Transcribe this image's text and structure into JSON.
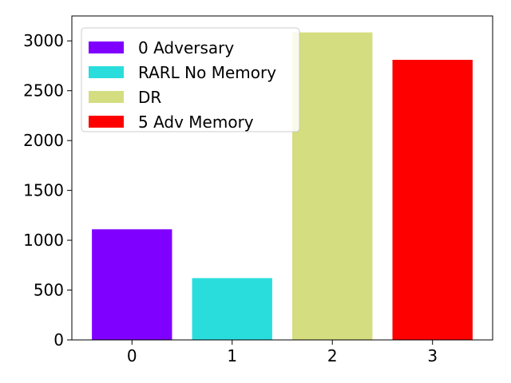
{
  "chart_data": {
    "type": "bar",
    "categories": [
      "0",
      "1",
      "2",
      "3"
    ],
    "values": [
      1110,
      620,
      3085,
      2810
    ],
    "colors": [
      "#8000ff",
      "#2adddd",
      "#d4dd80",
      "#ff0000"
    ],
    "series": [
      {
        "name": "0 Adversary",
        "color": "#8000ff",
        "values": [
          1110,
          null,
          null,
          null
        ]
      },
      {
        "name": "RARL No Memory",
        "color": "#2adddd",
        "values": [
          null,
          620,
          null,
          null
        ]
      },
      {
        "name": "DR",
        "color": "#d4dd80",
        "values": [
          null,
          null,
          3085,
          null
        ]
      },
      {
        "name": "5 Adv Memory",
        "color": "#ff0000",
        "values": [
          null,
          null,
          null,
          2810
        ]
      }
    ],
    "yticks": [
      0,
      500,
      1000,
      1500,
      2000,
      2500,
      3000
    ],
    "ylim": [
      0,
      3250
    ],
    "xlim": [
      -0.6,
      3.6
    ],
    "grid": false,
    "legend_position": "top-left"
  }
}
